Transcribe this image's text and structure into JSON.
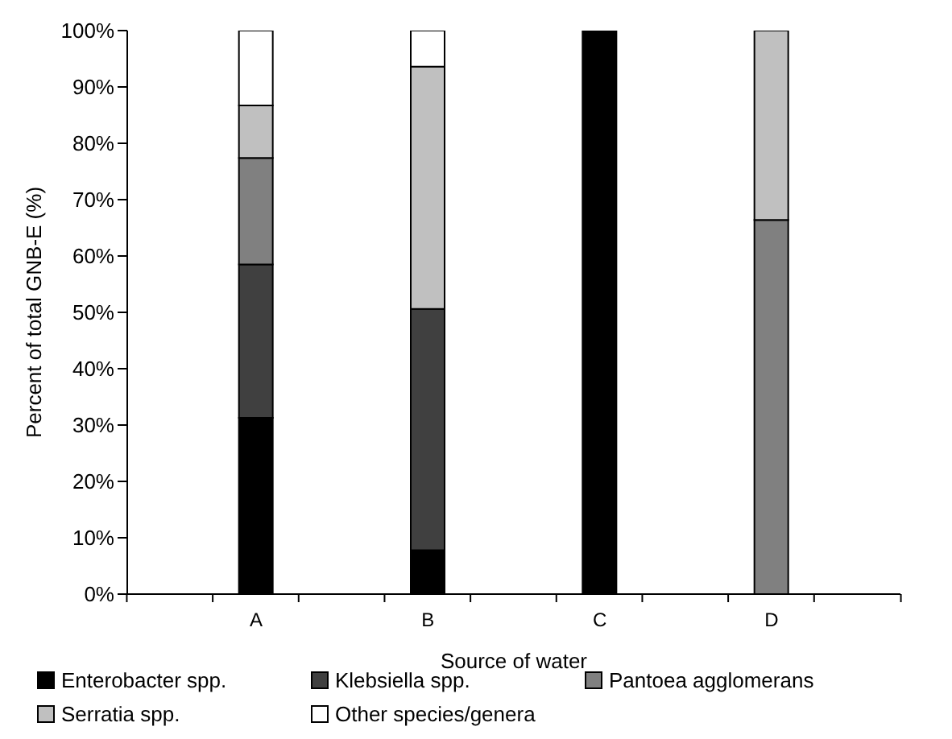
{
  "chart_data": {
    "type": "bar",
    "stacked": true,
    "xlabel": "Source of water",
    "ylabel": "Percent of total GNB-E (%)",
    "categories": [
      null,
      "A",
      null,
      "B",
      null,
      "C",
      null,
      "D",
      null
    ],
    "series": [
      {
        "name": "Enterobacter spp.",
        "color": "#000000",
        "values": [
          null,
          31.3,
          null,
          7.8,
          null,
          100,
          null,
          0,
          null
        ]
      },
      {
        "name": "Klebsiella spp.",
        "color": "#404040",
        "values": [
          null,
          27.2,
          null,
          42.8,
          null,
          0,
          null,
          0,
          null
        ]
      },
      {
        "name": "Pantoea agglomerans",
        "color": "#808080",
        "values": [
          null,
          18.9,
          null,
          0,
          null,
          0,
          null,
          66.4,
          null
        ]
      },
      {
        "name": "Serratia spp.",
        "color": "#c0c0c0",
        "values": [
          null,
          9.3,
          null,
          43,
          null,
          0,
          null,
          33.6,
          null
        ]
      },
      {
        "name": "Other species/genera",
        "color": "#ffffff",
        "values": [
          null,
          13.3,
          null,
          6.4,
          null,
          0,
          null,
          0,
          null
        ]
      }
    ],
    "ylim": [
      0,
      100
    ],
    "yticks": [
      {
        "value": 0,
        "label": "0%"
      },
      {
        "value": 10,
        "label": "10%"
      },
      {
        "value": 20,
        "label": "20%"
      },
      {
        "value": 30,
        "label": "30%"
      },
      {
        "value": 40,
        "label": "40%"
      },
      {
        "value": 50,
        "label": "50%"
      },
      {
        "value": 60,
        "label": "60%"
      },
      {
        "value": 70,
        "label": "70%"
      },
      {
        "value": 80,
        "label": "80%"
      },
      {
        "value": 90,
        "label": "90%"
      },
      {
        "value": 100,
        "label": "100%"
      }
    ],
    "grid": false,
    "legend": "bottom"
  }
}
